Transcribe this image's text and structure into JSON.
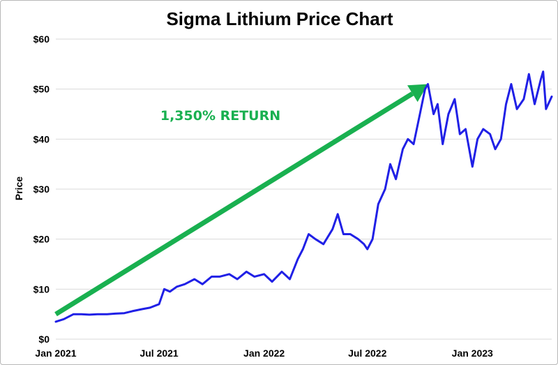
{
  "chart_data": {
    "type": "line",
    "title": "Sigma Lithium Price Chart",
    "xlabel": "",
    "ylabel": "Price",
    "ylim": [
      0,
      60
    ],
    "y_ticks": [
      0,
      10,
      20,
      30,
      40,
      50,
      60
    ],
    "y_tick_labels": [
      "$0",
      "$10",
      "$20",
      "$30",
      "$40",
      "$50",
      "$60"
    ],
    "x_ticks": [
      "2021-01-01",
      "2021-07-01",
      "2022-01-01",
      "2022-07-01",
      "2023-01-01"
    ],
    "x_tick_labels": [
      "Jan 2021",
      "Jul 2021",
      "Jan 2022",
      "Jul 2022",
      "Jan 2023"
    ],
    "xlim": [
      "2021-01-01",
      "2023-05-20"
    ],
    "grid": "horizontal",
    "series": [
      {
        "color": "#2020e6",
        "x": [
          "2021-01-01",
          "2021-01-15",
          "2021-02-01",
          "2021-02-15",
          "2021-03-01",
          "2021-03-15",
          "2021-04-01",
          "2021-04-15",
          "2021-05-01",
          "2021-05-15",
          "2021-06-01",
          "2021-06-15",
          "2021-07-01",
          "2021-07-10",
          "2021-07-20",
          "2021-08-01",
          "2021-08-15",
          "2021-09-01",
          "2021-09-15",
          "2021-10-01",
          "2021-10-15",
          "2021-11-01",
          "2021-11-15",
          "2021-12-01",
          "2021-12-15",
          "2022-01-01",
          "2022-01-15",
          "2022-02-01",
          "2022-02-15",
          "2022-03-01",
          "2022-03-10",
          "2022-03-20",
          "2022-04-01",
          "2022-04-15",
          "2022-05-01",
          "2022-05-10",
          "2022-05-20",
          "2022-06-01",
          "2022-06-15",
          "2022-06-25",
          "2022-07-01",
          "2022-07-10",
          "2022-07-20",
          "2022-08-01",
          "2022-08-10",
          "2022-08-20",
          "2022-09-01",
          "2022-09-10",
          "2022-09-20",
          "2022-10-01",
          "2022-10-10",
          "2022-10-15",
          "2022-10-25",
          "2022-11-01",
          "2022-11-10",
          "2022-11-20",
          "2022-12-01",
          "2022-12-10",
          "2022-12-20",
          "2023-01-01",
          "2023-01-10",
          "2023-01-20",
          "2023-02-01",
          "2023-02-10",
          "2023-02-20",
          "2023-03-01",
          "2023-03-10",
          "2023-03-20",
          "2023-04-01",
          "2023-04-10",
          "2023-04-20",
          "2023-05-01",
          "2023-05-05",
          "2023-05-10",
          "2023-05-20"
        ],
        "y": [
          3.5,
          4.0,
          5.0,
          5.0,
          4.9,
          5.0,
          5.0,
          5.1,
          5.2,
          5.6,
          6.0,
          6.3,
          7.0,
          10.0,
          9.5,
          10.5,
          11.0,
          12.0,
          11.0,
          12.5,
          12.5,
          13.0,
          12.0,
          13.5,
          12.5,
          13.0,
          11.5,
          13.5,
          12.0,
          16.0,
          18.0,
          21.0,
          20.0,
          19.0,
          22.0,
          25.0,
          21.0,
          21.0,
          20.0,
          19.0,
          18.0,
          20.0,
          27.0,
          30.0,
          35.0,
          32.0,
          38.0,
          40.0,
          39.0,
          45.0,
          50.0,
          51.0,
          45.0,
          47.0,
          39.0,
          45.0,
          48.0,
          41.0,
          42.0,
          34.5,
          40.0,
          42.0,
          41.0,
          38.0,
          40.0,
          47.0,
          51.0,
          46.0,
          48.0,
          53.0,
          47.0,
          52.0,
          53.5,
          46.0,
          48.5
        ]
      }
    ],
    "annotation": {
      "text": "1,350% RETURN",
      "color": "#19b050",
      "arrow": {
        "from": [
          "2021-01-01",
          5
        ],
        "to": [
          "2022-10-15",
          51
        ]
      }
    }
  }
}
